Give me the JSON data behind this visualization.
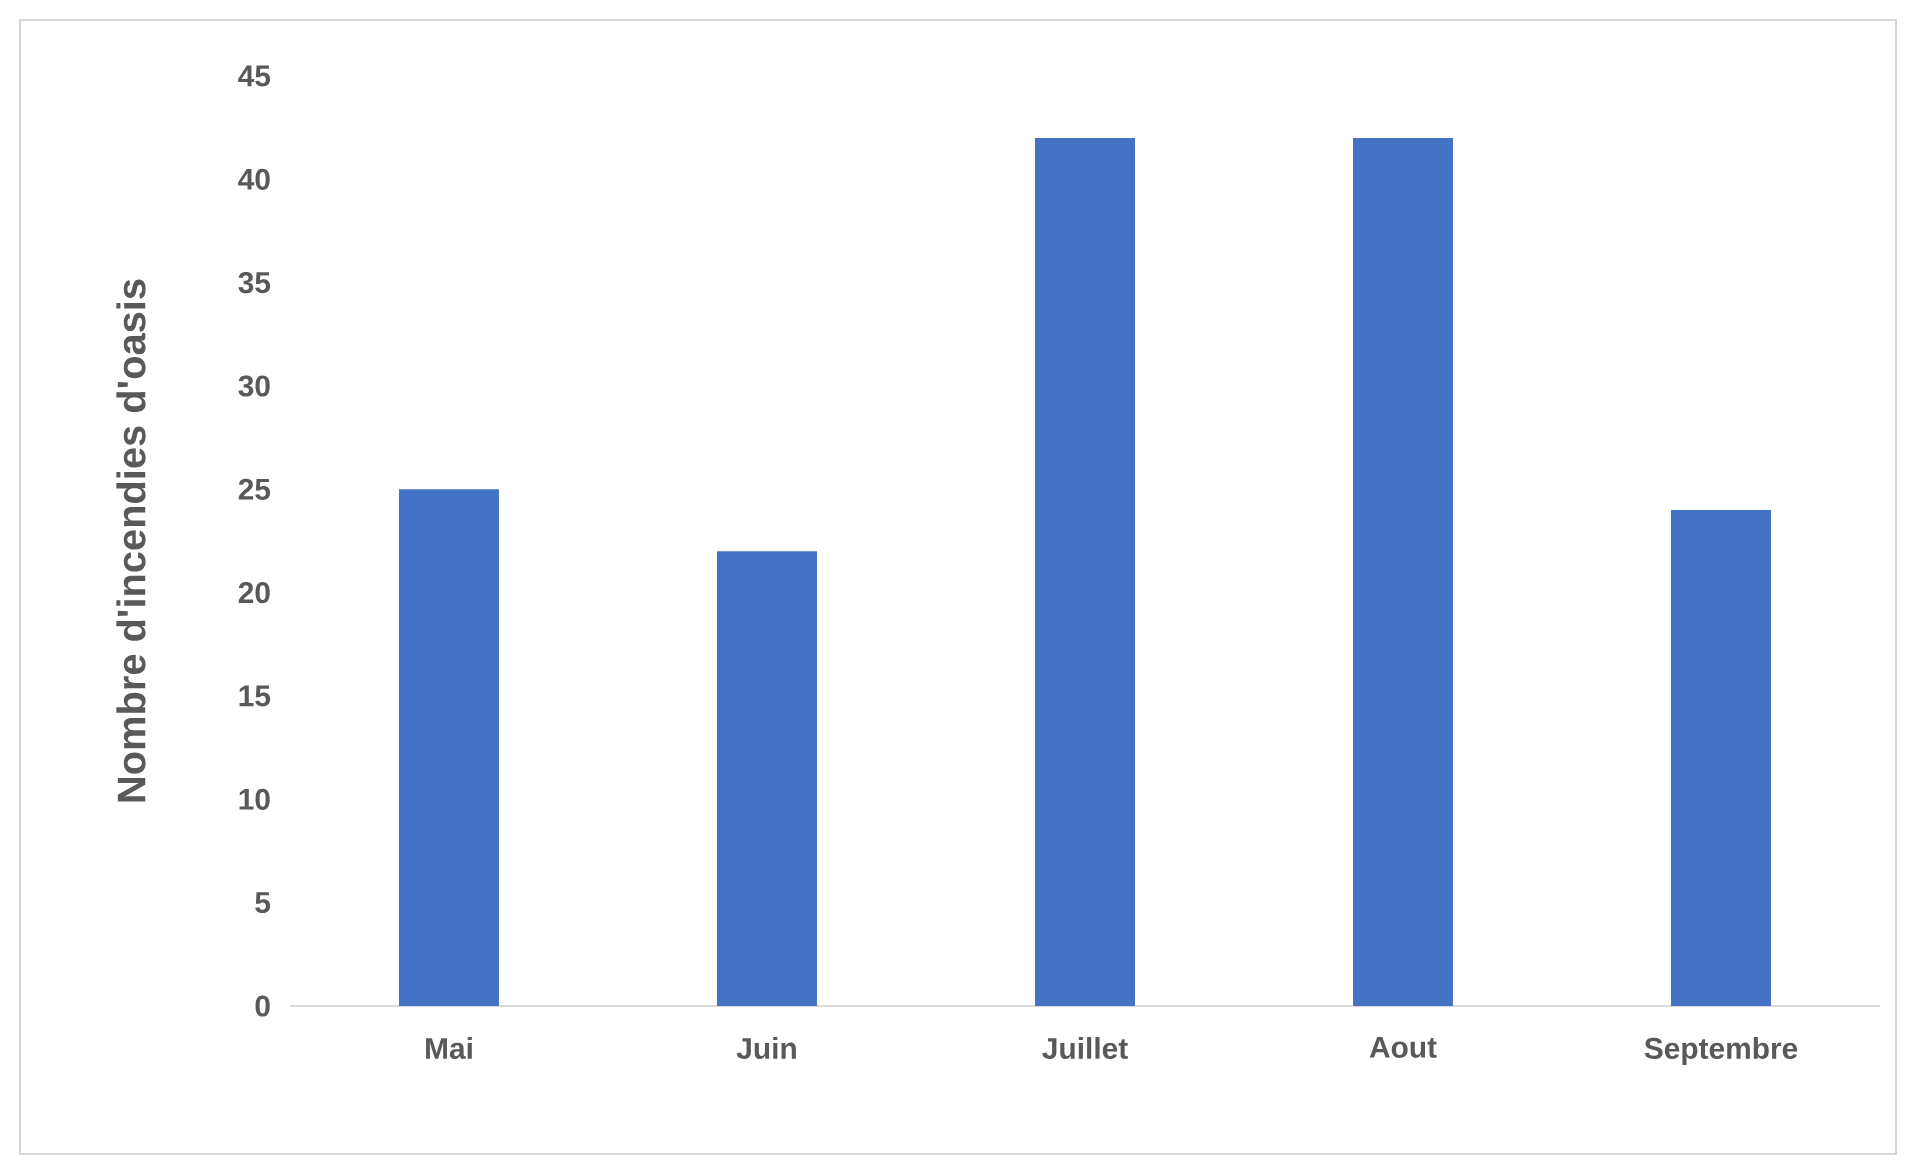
{
  "chart_data": {
    "type": "bar",
    "ylabel": "Nombre d'incendies d'oasis",
    "categories": [
      "Mai",
      "Juin",
      "Juillet",
      "Aout",
      "Septembre"
    ],
    "values": [
      25,
      22,
      42,
      42,
      24
    ],
    "color": "#4472c4",
    "ylim": [
      0,
      45
    ],
    "yticks": [
      0,
      5,
      10,
      15,
      20,
      25,
      30,
      35,
      40,
      45
    ],
    "grid": false
  }
}
